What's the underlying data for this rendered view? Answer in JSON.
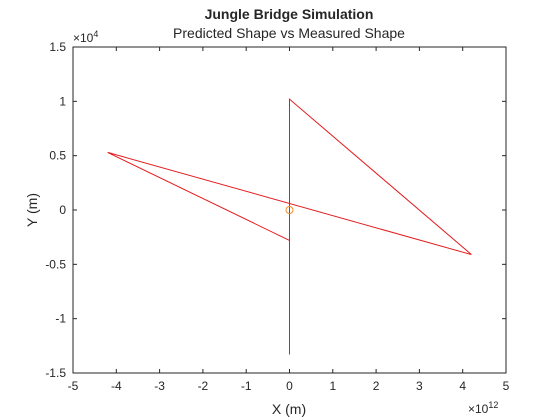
{
  "chart_data": {
    "type": "line",
    "title": "Jungle Bridge Simulation",
    "subtitle": "Predicted Shape vs Measured Shape",
    "xlabel": "X (m)",
    "ylabel": "Y (m)",
    "xlim": [
      -5,
      5
    ],
    "ylim": [
      -1.5,
      1.5
    ],
    "x_ticks": [
      -5,
      -4,
      -3,
      -2,
      -1,
      0,
      1,
      2,
      3,
      4,
      5
    ],
    "y_ticks": [
      -1.5,
      -1,
      -0.5,
      0,
      0.5,
      1,
      1.5
    ],
    "x_tick_labels": [
      "-5",
      "-4",
      "-3",
      "-2",
      "-1",
      "0",
      "1",
      "2",
      "3",
      "4",
      "5"
    ],
    "y_tick_labels": [
      "-1.5",
      "-1",
      "-0.5",
      "0",
      "0.5",
      "1",
      "1.5"
    ],
    "x_exponent": {
      "base": "×10",
      "power": "12"
    },
    "y_exponent": {
      "base": "×10",
      "power": "4"
    },
    "grid": false,
    "series": [
      {
        "color": "#e41a1c",
        "marker": "none",
        "points": [
          {
            "x": 0,
            "y": -1.33
          },
          {
            "x": 0,
            "y": 1.02
          },
          {
            "x": 4.2,
            "y": -0.41
          },
          {
            "x": -4.2,
            "y": 0.53
          },
          {
            "x": 0,
            "y": -0.28
          }
        ]
      },
      {
        "color": "#f28e2b",
        "marker": "circle",
        "points": [
          {
            "x": 0,
            "y": 0
          }
        ]
      }
    ]
  }
}
